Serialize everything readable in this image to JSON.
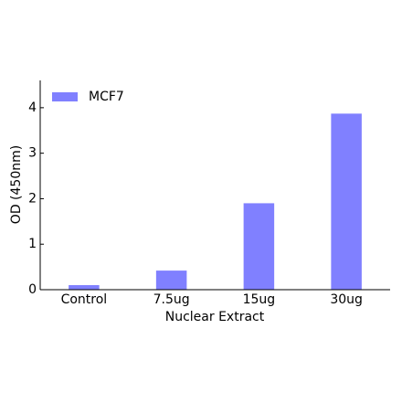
{
  "chart_data": {
    "type": "bar",
    "x_label": "Nuclear Extract",
    "y_label": "OD (450nm)",
    "categories": [
      "Control",
      "7.5ug",
      "15ug",
      "30ug"
    ],
    "series": [
      {
        "name": "MCF7",
        "color": "#8080ff",
        "values": [
          0.1,
          0.42,
          1.9,
          3.87
        ]
      }
    ],
    "ylim": [
      0,
      4.6
    ],
    "yticks": [
      0,
      1,
      2,
      3,
      4
    ],
    "legend": "upper left"
  }
}
